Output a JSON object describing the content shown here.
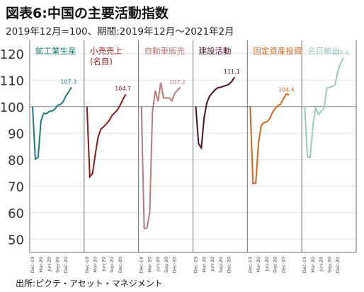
{
  "header": {
    "title": "図表6:中国の主要活動指数",
    "subtitle": "2019年12月=100、期間:2019年12月～2021年2月"
  },
  "footer": {
    "source": "出所:ピクテ・アセット・マネジメント"
  },
  "chart_data": {
    "type": "line",
    "ylim": [
      45,
      125
    ],
    "yticks": [
      50,
      60,
      70,
      80,
      90,
      100,
      110,
      120
    ],
    "reference_value": 100,
    "grid": true,
    "x_tick_labels": [
      "Dec-19",
      "Mar-20",
      "Jun-20",
      "Sep-20",
      "Dec-20"
    ],
    "series": [
      {
        "name": "鉱工業生産",
        "color": "#1e7b7b",
        "end_label": "107.3",
        "values": [
          100,
          80.2,
          80.8,
          94.5,
          97.5,
          97.3,
          98.2,
          98.3,
          99.0,
          100.5,
          100.8,
          101.8,
          104.0,
          105.5,
          107.3
        ]
      },
      {
        "name": "小売売上\n(名目)",
        "color": "#8b1a1a",
        "end_label": "104.7",
        "values": [
          100,
          73.5,
          74.8,
          82.0,
          88.5,
          91.5,
          92.4,
          93.5,
          94.8,
          96.6,
          97.7,
          98.8,
          100.6,
          102.8,
          104.7
        ]
      },
      {
        "name": "自動車販売",
        "color": "#b87a78",
        "end_label": "107.2",
        "values": [
          100,
          54.0,
          54.2,
          60.0,
          98.0,
          106.0,
          102.0,
          109.0,
          103.3,
          103.2,
          103.3,
          102.2,
          105.0,
          106.2,
          107.2
        ]
      },
      {
        "name": "建設活動",
        "color": "#4a0f2a",
        "end_label": "111.1",
        "values": [
          100,
          86.0,
          84.4,
          96.0,
          101.5,
          104.0,
          105.2,
          106.4,
          107.1,
          107.3,
          107.7,
          108.0,
          108.5,
          109.5,
          111.1
        ]
      },
      {
        "name": "固定資産投資",
        "color": "#d2651e",
        "end_label": "104.4",
        "values": [
          100,
          71.0,
          71.2,
          86.5,
          93.0,
          94.0,
          94.2,
          95.4,
          97.8,
          99.3,
          100.3,
          101.0,
          103.0,
          104.8,
          104.4
        ]
      },
      {
        "name": "名目輸出",
        "color": "#9cc8c0",
        "end_label": "118.4",
        "values": [
          100,
          81.0,
          80.8,
          93.0,
          99.5,
          97.0,
          98.3,
          99.5,
          107.0,
          107.2,
          107.6,
          108.3,
          113.5,
          116.5,
          118.4
        ]
      }
    ]
  }
}
